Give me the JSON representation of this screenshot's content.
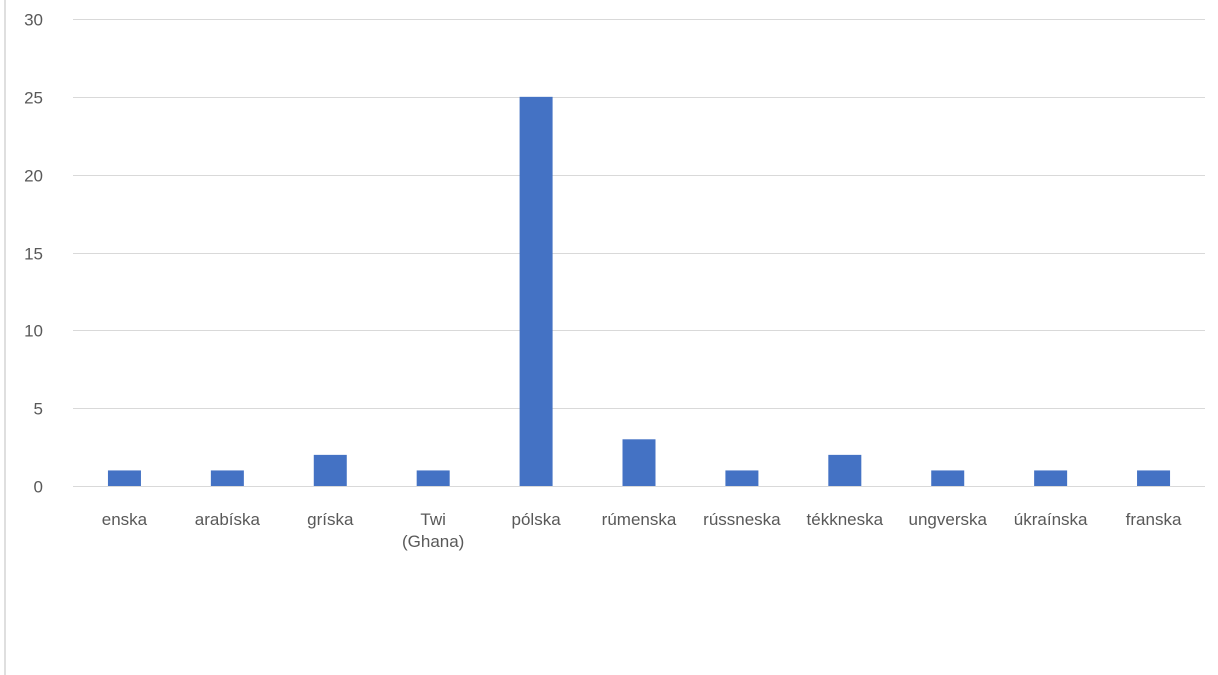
{
  "chart_data": {
    "type": "bar",
    "title": "",
    "xlabel": "",
    "ylabel": "",
    "categories": [
      [
        "enska"
      ],
      [
        "arabíska"
      ],
      [
        "gríska"
      ],
      [
        "Twi",
        "(Ghana)"
      ],
      [
        "pólska"
      ],
      [
        "rúmenska"
      ],
      [
        "rússneska"
      ],
      [
        "tékkneska"
      ],
      [
        "ungverska"
      ],
      [
        "úkraínska"
      ],
      [
        "franska"
      ]
    ],
    "values": [
      1,
      1,
      2,
      1,
      25,
      3,
      1,
      2,
      1,
      1,
      1
    ],
    "ylim": [
      0,
      30
    ],
    "yticks": [
      0,
      5,
      10,
      15,
      20,
      25,
      30
    ],
    "grid": true,
    "legend": "none",
    "colors": {
      "bar": "#4472C4",
      "grid": "#D9D9D9",
      "axis": "#D9D9D9",
      "text": "#595959",
      "frame": "#BFBFBF"
    }
  }
}
